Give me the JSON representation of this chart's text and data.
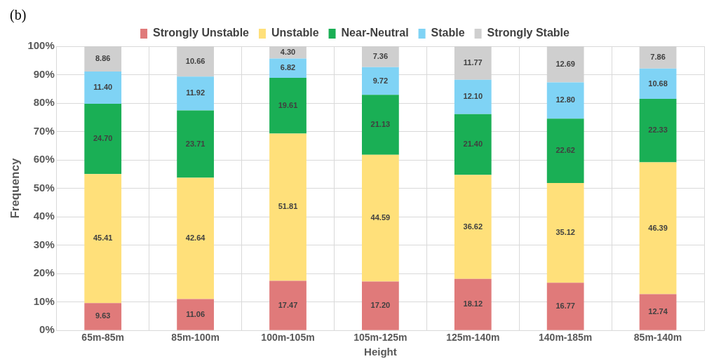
{
  "chart_data": {
    "type": "bar",
    "stacked": true,
    "annotations": [
      "(b)"
    ],
    "xlabel": "Height",
    "ylabel": "Frequency",
    "categories": [
      "65m-85m",
      "85m-100m",
      "100m-105m",
      "105m-125m",
      "125m-140m",
      "140m-185m",
      "85m-140m"
    ],
    "series": [
      {
        "name": "Strongly Unstable",
        "color": "#e07a7a",
        "values": [
          9.63,
          11.06,
          17.47,
          17.2,
          18.12,
          16.77,
          12.74
        ],
        "value_labels": [
          "9.63",
          "11.06",
          "17.47",
          "17.20",
          "18.12",
          "16.77",
          "12.74"
        ]
      },
      {
        "name": "Unstable",
        "color": "#ffe07a",
        "values": [
          45.41,
          42.64,
          51.81,
          44.59,
          36.62,
          35.12,
          46.39
        ],
        "value_labels": [
          "45.41",
          "42.64",
          "51.81",
          "44.59",
          "36.62",
          "35.12",
          "46.39"
        ]
      },
      {
        "name": "Near-Neutral",
        "color": "#1aaf55",
        "values": [
          24.7,
          23.71,
          19.61,
          21.13,
          21.4,
          22.62,
          22.33
        ],
        "value_labels": [
          "24.70",
          "23.71",
          "19.61",
          "21.13",
          "21.40",
          "22.62",
          "22.33"
        ]
      },
      {
        "name": "Stable",
        "color": "#7fd3f5",
        "values": [
          11.4,
          11.92,
          6.82,
          9.72,
          12.1,
          12.8,
          10.68
        ],
        "value_labels": [
          "11.40",
          "11.92",
          "6.82",
          "9.72",
          "12.10",
          "12.80",
          "10.68"
        ]
      },
      {
        "name": "Strongly Stable",
        "color": "#cfcfcf",
        "values": [
          8.86,
          10.66,
          4.3,
          7.36,
          11.77,
          12.69,
          7.86
        ],
        "value_labels": [
          "8.86",
          "10.66",
          "4.30",
          "7.36",
          "11.77",
          "12.69",
          "7.86"
        ]
      }
    ],
    "ylim": [
      0,
      100
    ],
    "yticks": [
      {
        "value": 0,
        "label": "0%"
      },
      {
        "value": 10,
        "label": "10%"
      },
      {
        "value": 20,
        "label": "20%"
      },
      {
        "value": 30,
        "label": "30%"
      },
      {
        "value": 40,
        "label": "40%"
      },
      {
        "value": 50,
        "label": "50%"
      },
      {
        "value": 60,
        "label": "60%"
      },
      {
        "value": 70,
        "label": "70%"
      },
      {
        "value": 80,
        "label": "80%"
      },
      {
        "value": 90,
        "label": "90%"
      },
      {
        "value": 100,
        "label": "100%"
      }
    ],
    "grid": true,
    "legend": "top"
  }
}
